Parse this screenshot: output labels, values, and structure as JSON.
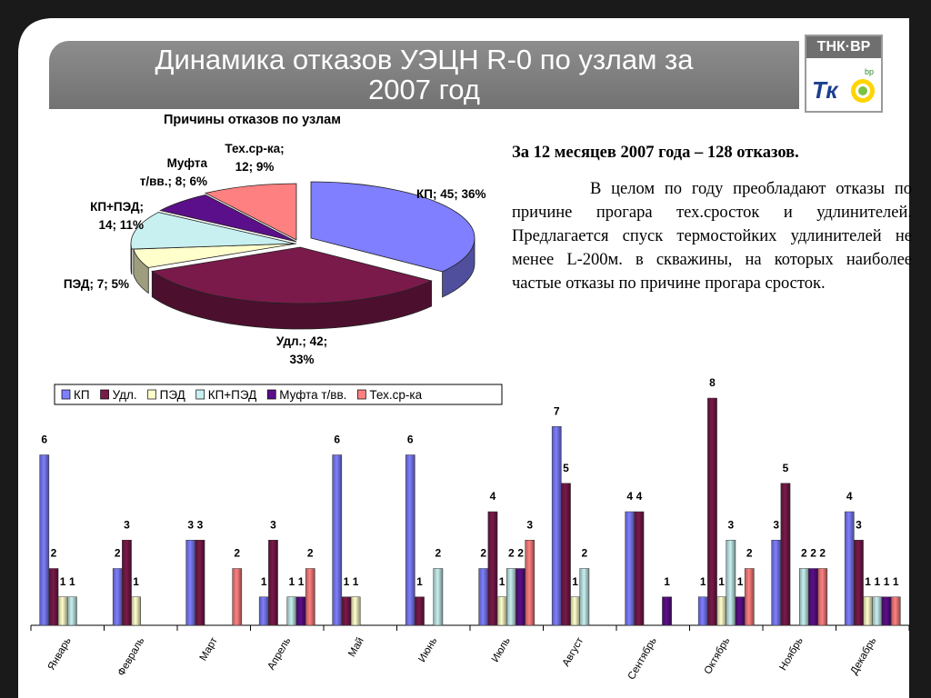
{
  "header": {
    "title_line1": "Динамика отказов УЭЦН  R-0 по узлам за",
    "title_line2": "2007 год",
    "logo_text": "ТНК·ВР",
    "logo_small": "bp"
  },
  "text": {
    "summary": "За 12 месяцев 2007 года – 128 отказов.",
    "paragraph": "В целом по году преобладают отказы по причине прогара тех.сросток и удлинителей.  Предлагается спуск термостойких удлинителей не менее L-200м. в скважины, на которых наиболее частые отказы по причине прогара сросток."
  },
  "chart_data": [
    {
      "type": "pie",
      "title": "Причины отказов по узлам",
      "slices": [
        {
          "name": "КП",
          "value": 45,
          "percent": 36,
          "label": "КП; 45; 36%"
        },
        {
          "name": "Удл.",
          "value": 42,
          "percent": 33,
          "label_lines": [
            "Удл.; 42;",
            "33%"
          ]
        },
        {
          "name": "ПЭД",
          "value": 7,
          "percent": 5,
          "label": "ПЭД; 7; 5%"
        },
        {
          "name": "КП+ПЭД",
          "value": 14,
          "percent": 11,
          "label_lines": [
            "КП+ПЭД;",
            "14; 11%"
          ]
        },
        {
          "name": "Муфта т/вв.",
          "value": 8,
          "percent": 6,
          "label_lines": [
            "Муфта",
            "т/вв.; 8; 6%"
          ]
        },
        {
          "name": "Тех.ср-ка",
          "value": 12,
          "percent": 9,
          "label_lines": [
            "Тех.ср-ка;",
            "12; 9%"
          ]
        }
      ],
      "colors": [
        "#7f7fff",
        "#7a1a4a",
        "#ffffcc",
        "#c8f0f0",
        "#5c0f8a",
        "#ff8080"
      ]
    },
    {
      "type": "bar",
      "categories": [
        "Январь",
        "Февраль",
        "Март",
        "Апрель",
        "Май",
        "Июнь",
        "Июль",
        "Август",
        "Сентябрь",
        "Октябрь",
        "Ноябрь",
        "Декабрь"
      ],
      "series": [
        {
          "name": "КП",
          "color": "#7f7fff",
          "values": [
            6,
            2,
            3,
            1,
            6,
            6,
            2,
            7,
            4,
            1,
            3,
            4
          ]
        },
        {
          "name": "Удл.",
          "color": "#7a1a4a",
          "values": [
            2,
            3,
            3,
            3,
            1,
            1,
            4,
            5,
            4,
            8,
            5,
            3
          ]
        },
        {
          "name": "ПЭД",
          "color": "#ffffcc",
          "values": [
            1,
            1,
            0,
            0,
            1,
            0,
            1,
            1,
            0,
            1,
            0,
            1
          ]
        },
        {
          "name": "КП+ПЭД",
          "color": "#c8f0f0",
          "values": [
            1,
            0,
            0,
            1,
            0,
            2,
            2,
            2,
            0,
            3,
            2,
            1
          ]
        },
        {
          "name": "Муфта т/вв.",
          "color": "#5c0f8a",
          "values": [
            0,
            0,
            0,
            1,
            0,
            0,
            2,
            0,
            1,
            1,
            2,
            1
          ]
        },
        {
          "name": "Тех.ср-ка",
          "color": "#ff8080",
          "values": [
            0,
            0,
            2,
            2,
            0,
            0,
            3,
            0,
            0,
            2,
            2,
            1
          ]
        }
      ],
      "ylim": [
        0,
        8
      ],
      "legend": "top-left"
    }
  ]
}
